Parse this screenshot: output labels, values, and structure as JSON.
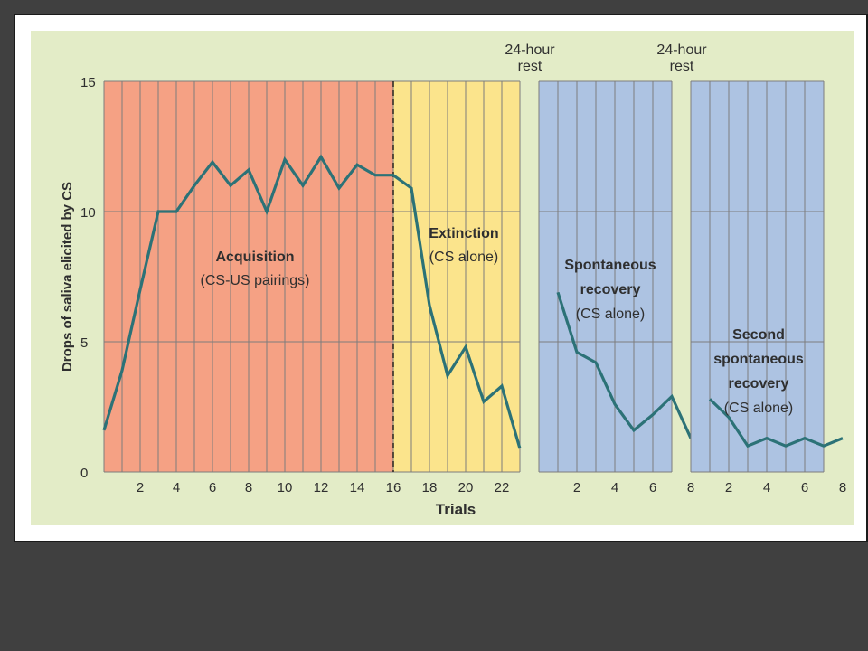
{
  "colors": {
    "slide_bg": "#404040",
    "figure_bg": "#e3ecc7",
    "acquisition_bg": "#f5a184",
    "extinction_bg": "#fbe48c",
    "recovery_bg": "#adc3e2",
    "gridline": "#7d7d7d",
    "line": "#2c7277",
    "text": "#2f2f2f"
  },
  "chart_data": {
    "type": "line",
    "title": "",
    "xlabel": "Trials",
    "ylabel": "Drops of saliva elicited by CS",
    "ylim": [
      0,
      15
    ],
    "yticks": [
      0,
      5,
      10,
      15
    ],
    "grid": true,
    "panels": [
      {
        "id": "conditioning",
        "xlim": [
          0,
          23
        ],
        "xticks": [
          2,
          4,
          6,
          8,
          10,
          12,
          14,
          16,
          18,
          20,
          22
        ],
        "shaded_regions": [
          {
            "name": "acquisition",
            "from": 0,
            "to": 16,
            "title": "Acquisition",
            "subtitle": "(CS-US pairings)"
          },
          {
            "name": "extinction",
            "from": 16,
            "to": 23,
            "title": "Extinction",
            "subtitle": "(CS alone)"
          }
        ],
        "divider_x": 16,
        "series": [
          {
            "x": [
              0,
              1,
              2,
              3,
              4,
              5,
              6,
              7,
              8,
              9,
              10,
              11,
              12,
              13,
              14,
              15,
              16,
              17,
              18,
              19,
              20,
              21,
              22,
              23
            ],
            "y": [
              1.6,
              3.9,
              7.0,
              10.0,
              10.0,
              11.0,
              11.9,
              11.0,
              11.6,
              10.0,
              12.0,
              11.0,
              12.1,
              10.9,
              11.8,
              11.4,
              11.4,
              10.9,
              6.4,
              3.7,
              4.8,
              2.7,
              3.3,
              0.9
            ]
          }
        ]
      },
      {
        "id": "recovery",
        "header": [
          "24-hour",
          "rest"
        ],
        "xlim": [
          0,
          7
        ],
        "xticks": [
          2,
          4,
          6,
          8
        ],
        "shaded_regions": [
          {
            "name": "spontaneous-recovery",
            "from": 0,
            "to": 7,
            "title_lines": [
              "Spontaneous",
              "recovery"
            ],
            "subtitle": "(CS alone)"
          }
        ],
        "series": [
          {
            "x": [
              1,
              2,
              3,
              4,
              5,
              6,
              7,
              8
            ],
            "y": [
              6.9,
              4.6,
              4.2,
              2.6,
              1.6,
              2.2,
              2.9,
              1.3
            ]
          }
        ]
      },
      {
        "id": "second-recovery",
        "header": [
          "24-hour",
          "rest"
        ],
        "xlim": [
          0,
          7
        ],
        "xticks": [
          2,
          4,
          6,
          8
        ],
        "shaded_regions": [
          {
            "name": "second-spontaneous-recovery",
            "from": 0,
            "to": 7,
            "title_lines": [
              "Second",
              "spontaneous",
              "recovery"
            ],
            "subtitle": "(CS alone)"
          }
        ],
        "series": [
          {
            "x": [
              1,
              2,
              3,
              4,
              5,
              6,
              7,
              8
            ],
            "y": [
              2.8,
              2.1,
              1.0,
              1.3,
              1.0,
              1.3,
              1.0,
              1.3
            ]
          }
        ]
      }
    ]
  }
}
